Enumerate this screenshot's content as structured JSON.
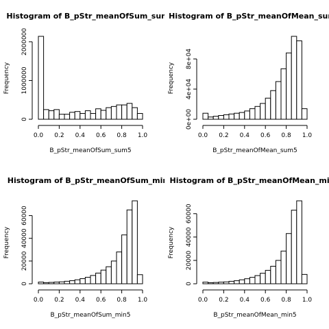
{
  "chart_data": [
    {
      "type": "histogram",
      "title": "Histogram of B_pStr_meanOfSum_sum",
      "xlabel": "B_pStr_meanOfSum_sum5",
      "ylabel": "Frequency",
      "bins": [
        0,
        0.05,
        0.1,
        0.15,
        0.2,
        0.25,
        0.3,
        0.35,
        0.4,
        0.45,
        0.5,
        0.55,
        0.6,
        0.65,
        0.7,
        0.75,
        0.8,
        0.85,
        0.9,
        0.95,
        1
      ],
      "values": [
        2140000,
        250000,
        220000,
        250000,
        130000,
        130000,
        180000,
        200000,
        150000,
        220000,
        150000,
        270000,
        230000,
        300000,
        330000,
        370000,
        370000,
        410000,
        300000,
        150000
      ],
      "xlim": [
        0,
        1
      ],
      "ylim": [
        0,
        2140000
      ],
      "xticks": [
        {
          "value": 0,
          "label": "0.0"
        },
        {
          "value": 0.2,
          "label": "0.2"
        },
        {
          "value": 0.4,
          "label": "0.4"
        },
        {
          "value": 0.6,
          "label": "0.6"
        },
        {
          "value": 0.8,
          "label": "0.8"
        },
        {
          "value": 1,
          "label": "1.0"
        }
      ],
      "yticks": [
        0,
        1000000,
        2000000
      ],
      "color": "#ffffff"
    },
    {
      "type": "histogram",
      "title": "Histogram of B_pStr_meanOfMean_sum",
      "xlabel": "B_pStr_meanOfMean_sum5",
      "ylabel": "Frequency",
      "bins": [
        0,
        0.05,
        0.1,
        0.15,
        0.2,
        0.25,
        0.3,
        0.35,
        0.4,
        0.45,
        0.5,
        0.55,
        0.6,
        0.65,
        0.7,
        0.75,
        0.8,
        0.85,
        0.9,
        0.95,
        1
      ],
      "values": [
        8000,
        3000,
        4000,
        5000,
        6000,
        7000,
        8000,
        9000,
        11000,
        14000,
        17000,
        21000,
        28000,
        38000,
        50000,
        67000,
        88000,
        110000,
        104000,
        14000
      ],
      "xlim": [
        0,
        1
      ],
      "ylim": [
        0,
        110000
      ],
      "xticks": [
        {
          "value": 0,
          "label": "0.0"
        },
        {
          "value": 0.2,
          "label": "0.2"
        },
        {
          "value": 0.4,
          "label": "0.4"
        },
        {
          "value": 0.6,
          "label": "0.6"
        },
        {
          "value": 0.8,
          "label": "0.8"
        },
        {
          "value": 1,
          "label": "1.0"
        }
      ],
      "yticks": [
        {
          "value": 0,
          "label": "0e+00"
        },
        {
          "value": 40000,
          "label": "4e+04"
        },
        {
          "value": 80000,
          "label": "8e+04"
        }
      ],
      "color": "#ffffff"
    },
    {
      "type": "histogram",
      "title": "Histogram of B_pStr_meanOfSum_min",
      "xlabel": "B_pStr_meanOfSum_min5",
      "ylabel": "Frequency",
      "bins": [
        0,
        0.05,
        0.1,
        0.15,
        0.2,
        0.25,
        0.3,
        0.35,
        0.4,
        0.45,
        0.5,
        0.55,
        0.6,
        0.65,
        0.7,
        0.75,
        0.8,
        0.85,
        0.9,
        0.95,
        1
      ],
      "values": [
        1500,
        1000,
        1200,
        1500,
        1700,
        2200,
        2700,
        3500,
        4500,
        5700,
        7300,
        9400,
        12000,
        15000,
        20000,
        28000,
        43000,
        65000,
        73000,
        8000
      ],
      "xlim": [
        0,
        1
      ],
      "ylim": [
        0,
        73000
      ],
      "xticks": [
        {
          "value": 0,
          "label": "0.0"
        },
        {
          "value": 0.2,
          "label": "0.2"
        },
        {
          "value": 0.4,
          "label": "0.4"
        },
        {
          "value": 0.6,
          "label": "0.6"
        },
        {
          "value": 0.8,
          "label": "0.8"
        },
        {
          "value": 1,
          "label": "1.0"
        }
      ],
      "yticks": [
        0,
        20000,
        40000,
        60000
      ],
      "color": "#ffffff"
    },
    {
      "type": "histogram",
      "title": "Histogram of B_pStr_meanOfMean_min",
      "xlabel": "B_pStr_meanOfMean_min5",
      "ylabel": "Frequency",
      "bins": [
        0,
        0.05,
        0.1,
        0.15,
        0.2,
        0.25,
        0.3,
        0.35,
        0.4,
        0.45,
        0.5,
        0.55,
        0.6,
        0.65,
        0.7,
        0.75,
        0.8,
        0.85,
        0.9,
        0.95,
        1
      ],
      "values": [
        1400,
        900,
        1100,
        1400,
        1600,
        2100,
        2600,
        3400,
        4300,
        5500,
        7000,
        9000,
        11500,
        15000,
        20000,
        28000,
        43000,
        63000,
        71000,
        8000
      ],
      "xlim": [
        0,
        1
      ],
      "ylim": [
        0,
        71000
      ],
      "xticks": [
        {
          "value": 0,
          "label": "0.0"
        },
        {
          "value": 0.2,
          "label": "0.2"
        },
        {
          "value": 0.4,
          "label": "0.4"
        },
        {
          "value": 0.6,
          "label": "0.6"
        },
        {
          "value": 0.8,
          "label": "0.8"
        },
        {
          "value": 1,
          "label": "1.0"
        }
      ],
      "yticks": [
        0,
        20000,
        40000,
        60000
      ],
      "color": "#ffffff"
    }
  ]
}
